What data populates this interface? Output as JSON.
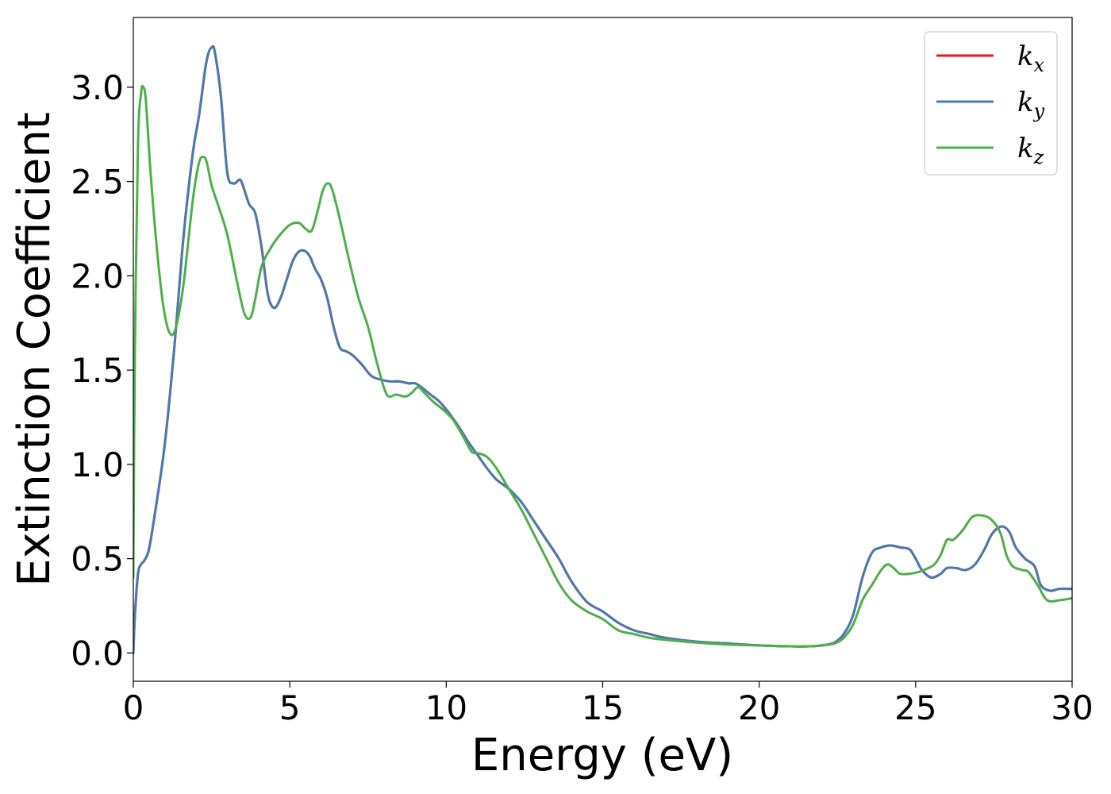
{
  "chart_data": {
    "type": "line",
    "xlabel": "Energy (eV)",
    "ylabel": "Extinction Coefficient",
    "xlim": [
      0,
      30
    ],
    "ylim": [
      -0.15,
      3.37
    ],
    "xticks": [
      0,
      5,
      10,
      15,
      20,
      25,
      30
    ],
    "xtick_labels": [
      "0",
      "5",
      "10",
      "15",
      "20",
      "25",
      "30"
    ],
    "yticks": [
      0.0,
      0.5,
      1.0,
      1.5,
      2.0,
      2.5,
      3.0
    ],
    "ytick_labels": [
      "0.0",
      "0.5",
      "1.0",
      "1.5",
      "2.0",
      "2.5",
      "3.0"
    ],
    "grid": false,
    "legend_position": "top-right",
    "series": [
      {
        "name": "k",
        "subscript": "x",
        "color": "#e41a1c",
        "x": [
          0,
          0.05,
          0.15,
          0.25,
          0.35,
          0.5,
          0.7,
          1.0,
          1.3,
          1.6,
          1.9,
          2.1,
          2.3,
          2.4,
          2.5,
          2.6,
          2.8,
          3.0,
          3.2,
          3.4,
          3.5,
          3.7,
          3.9,
          4.1,
          4.3,
          4.5,
          4.7,
          4.9,
          5.1,
          5.3,
          5.5,
          5.65,
          5.8,
          6.0,
          6.2,
          6.4,
          6.6,
          6.8,
          7.0,
          7.3,
          7.6,
          7.9,
          8.2,
          8.5,
          8.8,
          9.0,
          9.2,
          9.5,
          9.8,
          10.1,
          10.4,
          10.7,
          11.0,
          11.3,
          11.6,
          12.0,
          12.4,
          12.8,
          13.2,
          13.6,
          14.0,
          14.5,
          15.0,
          15.5,
          16.0,
          16.5,
          17.0,
          18.0,
          19.0,
          20.0,
          21.0,
          21.6,
          22.0,
          22.4,
          22.7,
          23.0,
          23.3,
          23.6,
          23.9,
          24.2,
          24.5,
          24.8,
          25.0,
          25.2,
          25.5,
          25.8,
          26.0,
          26.3,
          26.6,
          26.9,
          27.2,
          27.4,
          27.6,
          27.8,
          28.0,
          28.2,
          28.5,
          28.8,
          29.0,
          29.3,
          29.6,
          30.0
        ],
        "values": [
          0.0,
          0.2,
          0.42,
          0.47,
          0.49,
          0.55,
          0.75,
          1.1,
          1.6,
          2.2,
          2.65,
          2.85,
          3.1,
          3.18,
          3.21,
          3.19,
          2.95,
          2.55,
          2.49,
          2.51,
          2.48,
          2.38,
          2.33,
          2.15,
          1.9,
          1.83,
          1.88,
          1.98,
          2.08,
          2.13,
          2.13,
          2.1,
          2.04,
          1.98,
          1.88,
          1.73,
          1.62,
          1.6,
          1.58,
          1.53,
          1.47,
          1.45,
          1.44,
          1.44,
          1.43,
          1.43,
          1.41,
          1.37,
          1.33,
          1.27,
          1.2,
          1.12,
          1.05,
          0.98,
          0.92,
          0.87,
          0.8,
          0.7,
          0.6,
          0.5,
          0.38,
          0.27,
          0.22,
          0.16,
          0.12,
          0.1,
          0.08,
          0.06,
          0.05,
          0.04,
          0.035,
          0.035,
          0.04,
          0.055,
          0.1,
          0.2,
          0.4,
          0.53,
          0.56,
          0.57,
          0.56,
          0.55,
          0.5,
          0.44,
          0.4,
          0.42,
          0.45,
          0.45,
          0.44,
          0.47,
          0.55,
          0.62,
          0.66,
          0.67,
          0.64,
          0.56,
          0.5,
          0.46,
          0.36,
          0.33,
          0.34,
          0.34
        ]
      },
      {
        "name": "k",
        "subscript": "y",
        "color": "#4a7ab0",
        "x": [
          0,
          0.05,
          0.15,
          0.25,
          0.35,
          0.5,
          0.7,
          1.0,
          1.3,
          1.6,
          1.9,
          2.1,
          2.3,
          2.4,
          2.5,
          2.6,
          2.8,
          3.0,
          3.2,
          3.4,
          3.5,
          3.7,
          3.9,
          4.1,
          4.3,
          4.5,
          4.7,
          4.9,
          5.1,
          5.3,
          5.5,
          5.65,
          5.8,
          6.0,
          6.2,
          6.4,
          6.6,
          6.8,
          7.0,
          7.3,
          7.6,
          7.9,
          8.2,
          8.5,
          8.8,
          9.0,
          9.2,
          9.5,
          9.8,
          10.1,
          10.4,
          10.7,
          11.0,
          11.3,
          11.6,
          12.0,
          12.4,
          12.8,
          13.2,
          13.6,
          14.0,
          14.5,
          15.0,
          15.5,
          16.0,
          16.5,
          17.0,
          18.0,
          19.0,
          20.0,
          21.0,
          21.6,
          22.0,
          22.4,
          22.7,
          23.0,
          23.3,
          23.6,
          23.9,
          24.2,
          24.5,
          24.8,
          25.0,
          25.2,
          25.5,
          25.8,
          26.0,
          26.3,
          26.6,
          26.9,
          27.2,
          27.4,
          27.6,
          27.8,
          28.0,
          28.2,
          28.5,
          28.8,
          29.0,
          29.3,
          29.6,
          30.0
        ],
        "values": [
          0.0,
          0.2,
          0.42,
          0.47,
          0.49,
          0.55,
          0.75,
          1.1,
          1.6,
          2.2,
          2.65,
          2.85,
          3.1,
          3.18,
          3.21,
          3.19,
          2.95,
          2.55,
          2.49,
          2.51,
          2.48,
          2.38,
          2.33,
          2.15,
          1.9,
          1.83,
          1.88,
          1.98,
          2.08,
          2.13,
          2.13,
          2.1,
          2.04,
          1.98,
          1.88,
          1.73,
          1.62,
          1.6,
          1.58,
          1.53,
          1.47,
          1.45,
          1.44,
          1.44,
          1.43,
          1.43,
          1.41,
          1.37,
          1.33,
          1.27,
          1.2,
          1.12,
          1.05,
          0.98,
          0.92,
          0.87,
          0.8,
          0.7,
          0.6,
          0.5,
          0.38,
          0.27,
          0.22,
          0.16,
          0.12,
          0.1,
          0.08,
          0.06,
          0.05,
          0.04,
          0.035,
          0.035,
          0.04,
          0.055,
          0.1,
          0.2,
          0.4,
          0.53,
          0.56,
          0.57,
          0.56,
          0.55,
          0.5,
          0.44,
          0.4,
          0.42,
          0.45,
          0.45,
          0.44,
          0.47,
          0.55,
          0.62,
          0.66,
          0.67,
          0.64,
          0.56,
          0.5,
          0.46,
          0.36,
          0.33,
          0.34,
          0.34
        ]
      },
      {
        "name": "k",
        "subscript": "z",
        "color": "#4daf4a",
        "x": [
          0,
          0.05,
          0.15,
          0.25,
          0.32,
          0.4,
          0.55,
          0.75,
          0.95,
          1.15,
          1.35,
          1.6,
          1.9,
          2.1,
          2.25,
          2.35,
          2.5,
          2.7,
          3.0,
          3.3,
          3.55,
          3.75,
          3.9,
          4.1,
          4.4,
          4.7,
          5.0,
          5.3,
          5.5,
          5.7,
          5.9,
          6.05,
          6.2,
          6.35,
          6.6,
          6.9,
          7.2,
          7.5,
          7.8,
          8.1,
          8.4,
          8.7,
          8.9,
          9.1,
          9.3,
          9.6,
          9.9,
          10.2,
          10.5,
          10.8,
          11.0,
          11.3,
          11.6,
          12.0,
          12.4,
          12.8,
          13.2,
          13.6,
          14.0,
          14.5,
          15.0,
          15.5,
          16.0,
          16.5,
          17.0,
          18.0,
          19.0,
          20.0,
          21.0,
          21.6,
          22.0,
          22.4,
          22.7,
          23.0,
          23.3,
          23.6,
          23.9,
          24.1,
          24.3,
          24.5,
          24.8,
          25.1,
          25.4,
          25.6,
          25.8,
          26.0,
          26.2,
          26.5,
          26.8,
          27.1,
          27.4,
          27.7,
          27.9,
          28.1,
          28.4,
          28.6,
          28.9,
          29.2,
          29.6,
          30.0
        ],
        "values": [
          0.4,
          1.6,
          2.7,
          2.97,
          3.0,
          2.93,
          2.55,
          2.15,
          1.85,
          1.7,
          1.72,
          1.95,
          2.4,
          2.6,
          2.63,
          2.6,
          2.48,
          2.38,
          2.22,
          1.98,
          1.8,
          1.78,
          1.88,
          2.05,
          2.15,
          2.22,
          2.27,
          2.28,
          2.25,
          2.24,
          2.35,
          2.45,
          2.49,
          2.46,
          2.3,
          2.08,
          1.88,
          1.73,
          1.53,
          1.37,
          1.37,
          1.36,
          1.38,
          1.41,
          1.38,
          1.33,
          1.29,
          1.24,
          1.16,
          1.07,
          1.06,
          1.04,
          0.98,
          0.87,
          0.76,
          0.63,
          0.5,
          0.37,
          0.28,
          0.22,
          0.18,
          0.12,
          0.1,
          0.08,
          0.07,
          0.055,
          0.045,
          0.04,
          0.035,
          0.035,
          0.04,
          0.05,
          0.08,
          0.15,
          0.28,
          0.36,
          0.44,
          0.47,
          0.45,
          0.42,
          0.42,
          0.43,
          0.45,
          0.47,
          0.52,
          0.6,
          0.6,
          0.65,
          0.72,
          0.73,
          0.71,
          0.64,
          0.52,
          0.46,
          0.44,
          0.43,
          0.36,
          0.28,
          0.28,
          0.29
        ]
      }
    ]
  }
}
